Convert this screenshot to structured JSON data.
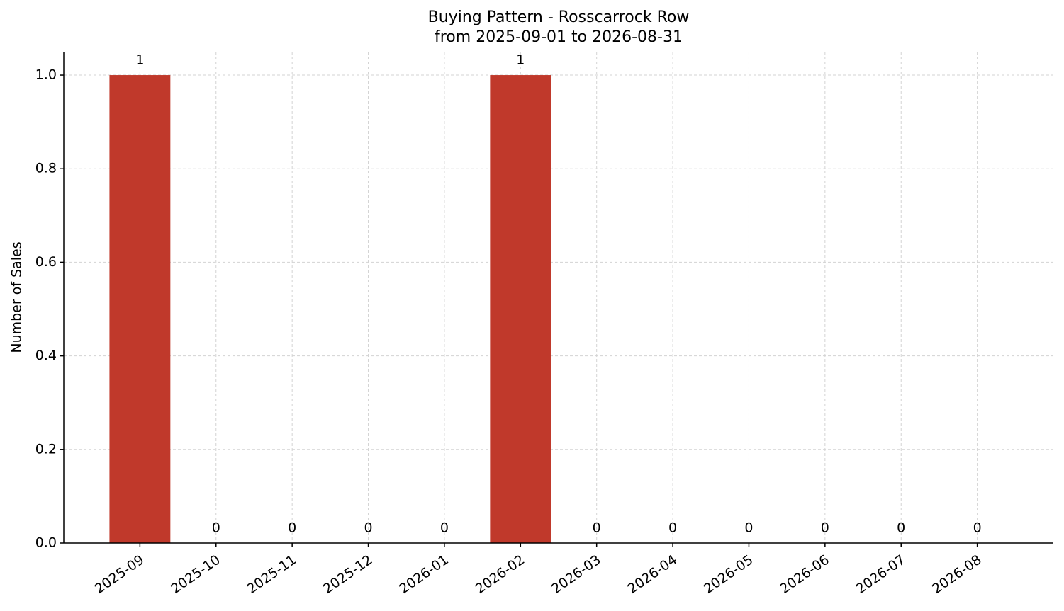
{
  "chart_data": {
    "type": "bar",
    "title": "Buying Pattern - Rosscarrock Row",
    "subtitle": "from 2025-09-01 to 2026-08-31",
    "y_label": "Number of Sales",
    "categories": [
      "2025-09",
      "2025-10",
      "2025-11",
      "2025-12",
      "2026-01",
      "2026-02",
      "2026-03",
      "2026-04",
      "2026-05",
      "2026-06",
      "2026-07",
      "2026-08"
    ],
    "values": [
      1,
      0,
      0,
      0,
      0,
      1,
      0,
      0,
      0,
      0,
      0,
      0
    ],
    "color": "#c0392b",
    "ylim": [
      0,
      1.05
    ],
    "yticks": [
      {
        "value": 0,
        "label": "0.0"
      },
      0.2,
      0.4,
      0.6,
      0.8,
      {
        "value": 1,
        "label": "1.0"
      }
    ],
    "grid": true
  }
}
